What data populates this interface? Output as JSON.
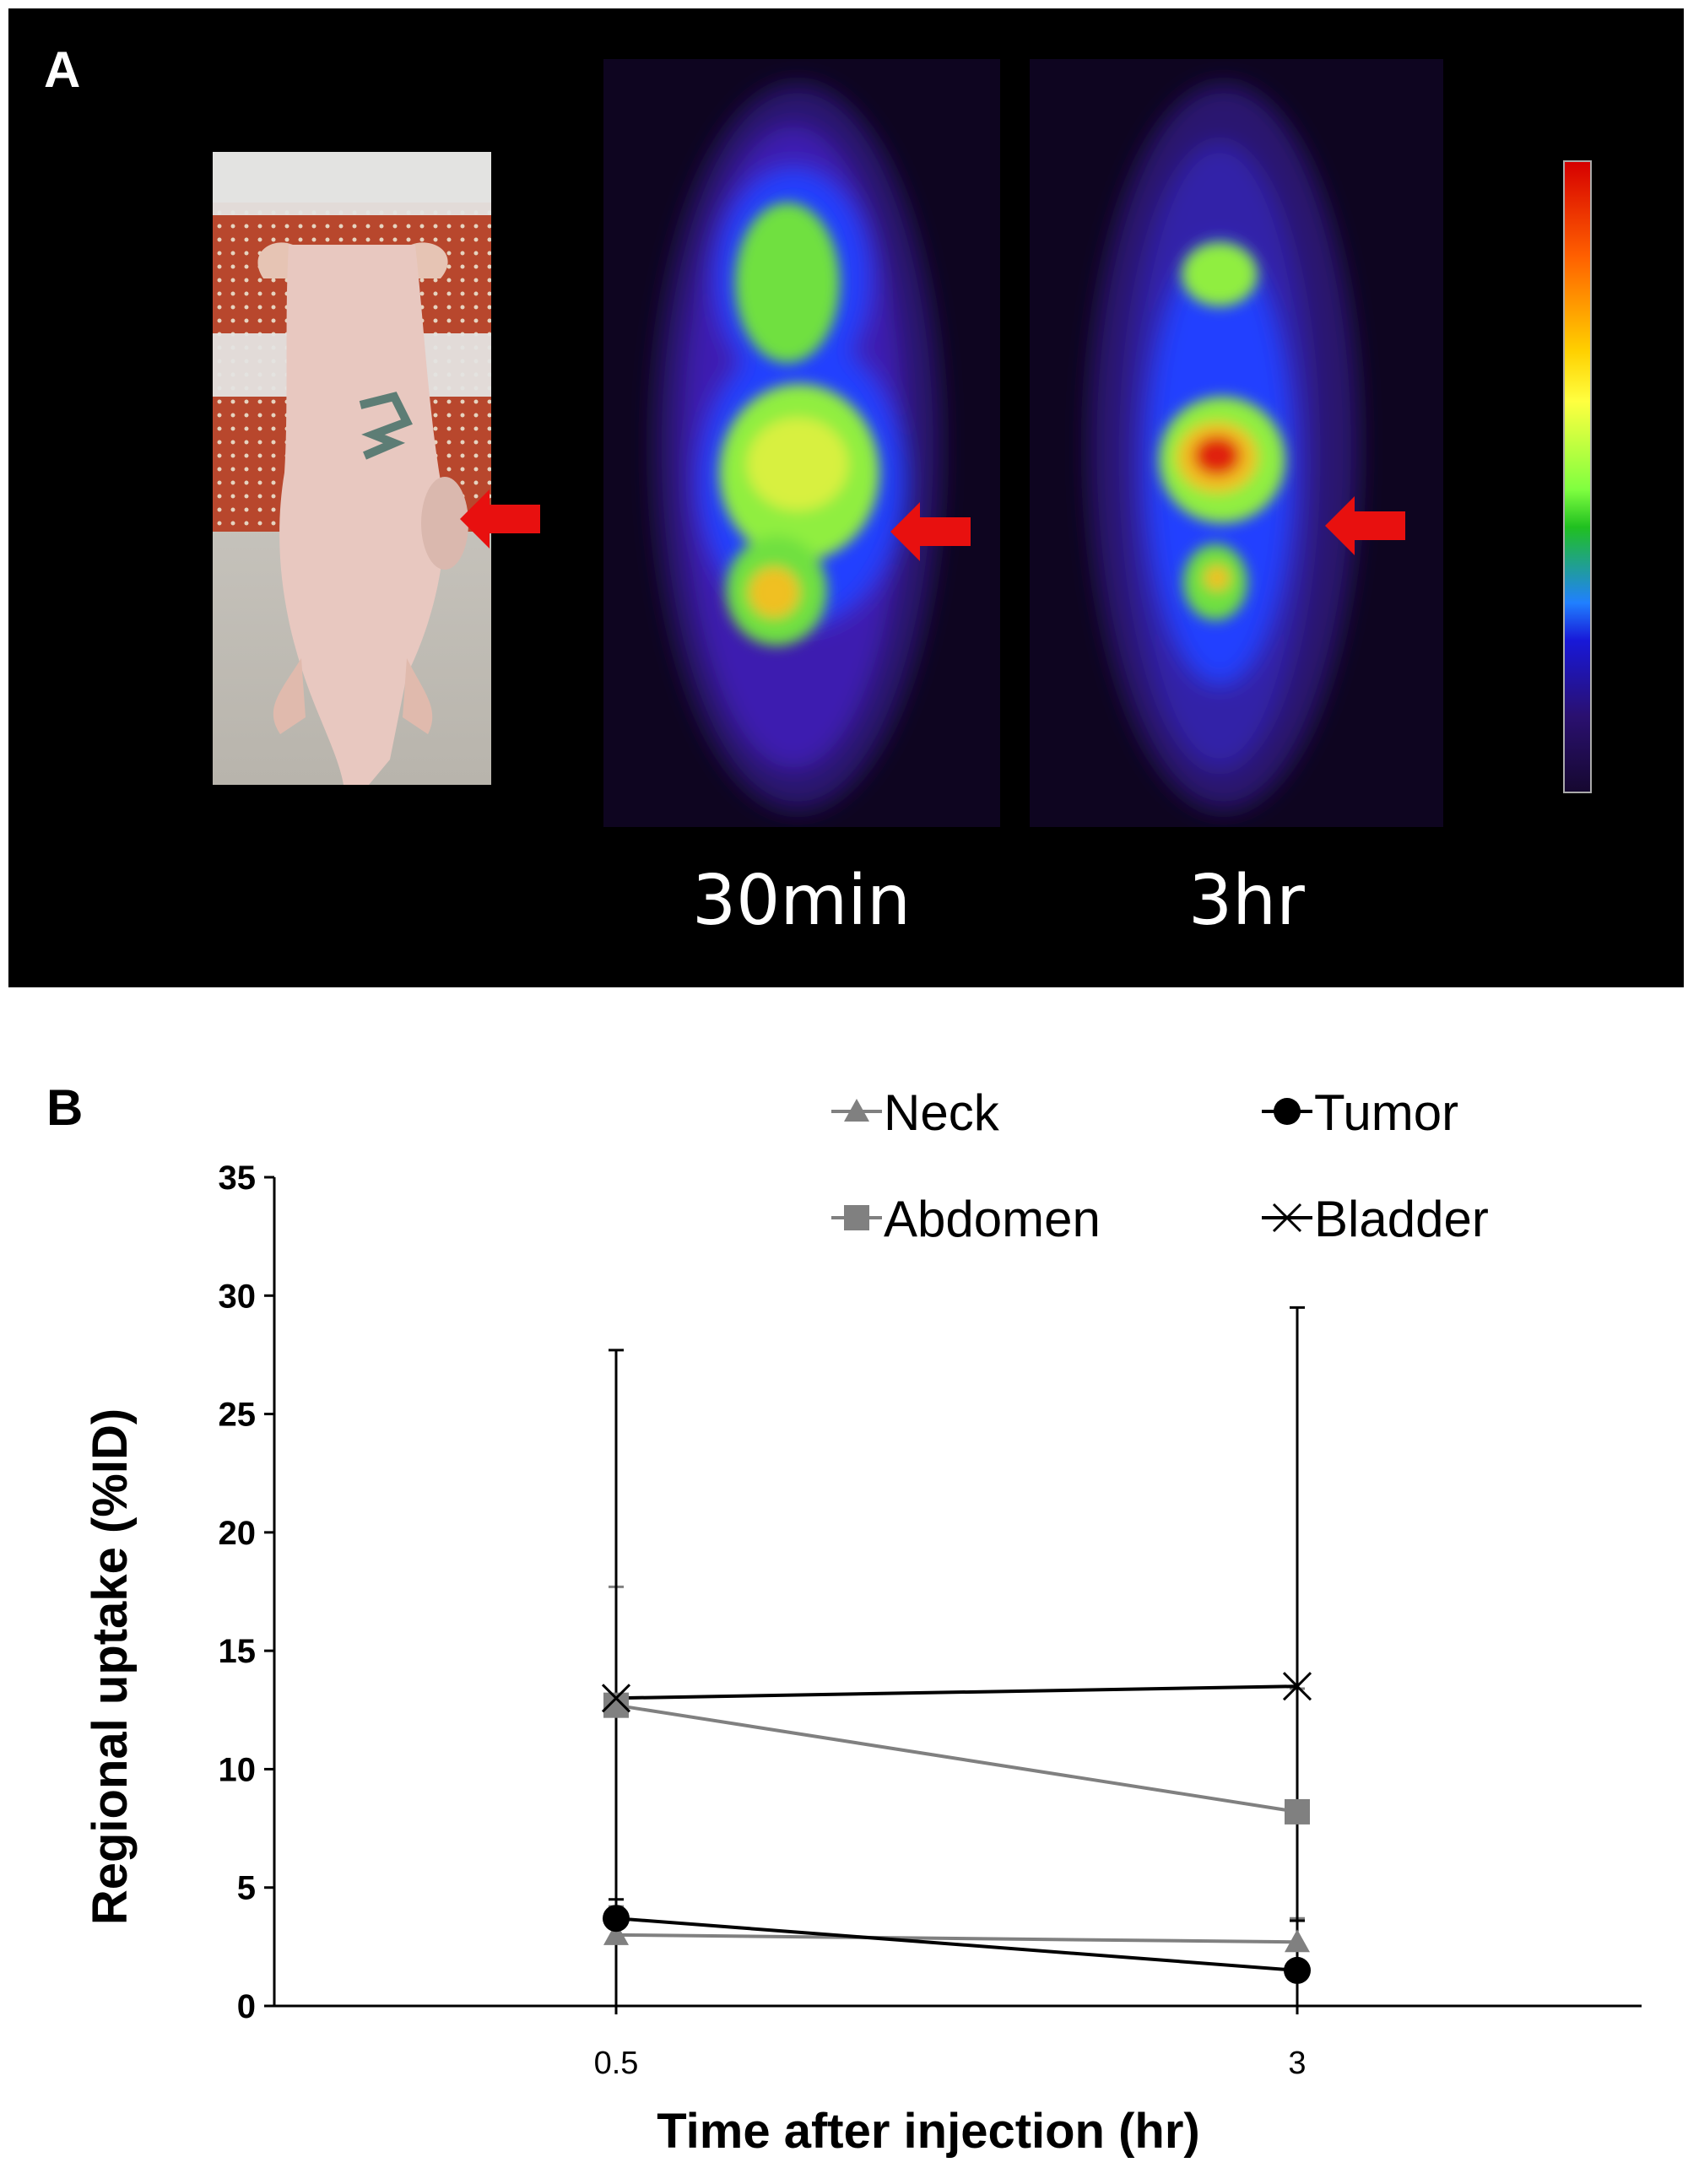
{
  "panel_a": {
    "letter": "A",
    "time_labels": [
      "30min",
      "3hr"
    ],
    "colorbar_colors": [
      "#d60000",
      "#ff6000",
      "#ffd000",
      "#ffff40",
      "#80ff40",
      "#20c020",
      "#2080ff",
      "#1818d8",
      "#2a1070",
      "#160830"
    ],
    "arrow_color": "#e8100f"
  },
  "panel_b": {
    "letter": "B"
  },
  "chart_data": {
    "type": "line",
    "xlabel": "Time after injection (hr)",
    "ylabel": "Regional uptake (%ID)",
    "categories": [
      "0.5",
      "3"
    ],
    "ylim": [
      0,
      35
    ],
    "yticks": [
      "0",
      "5",
      "10",
      "15",
      "20",
      "25",
      "30",
      "35"
    ],
    "grid": false,
    "legend_position": "top-right",
    "series": [
      {
        "name": "Neck",
        "values": [
          3.0,
          2.7
        ],
        "error": [
          1.2,
          1.0
        ],
        "color": "#808080",
        "marker": "triangle"
      },
      {
        "name": "Tumor",
        "values": [
          3.7,
          1.5
        ],
        "error": [
          0.8,
          2.1
        ],
        "color": "#000000",
        "marker": "circle"
      },
      {
        "name": "Abdomen",
        "values": [
          12.7,
          8.2
        ],
        "error": [
          5.0,
          5.2
        ],
        "color": "#808080",
        "marker": "square"
      },
      {
        "name": "Bladder",
        "values": [
          13.0,
          13.5
        ],
        "error": [
          14.7,
          16.0
        ],
        "color": "#000000",
        "marker": "x"
      }
    ]
  }
}
